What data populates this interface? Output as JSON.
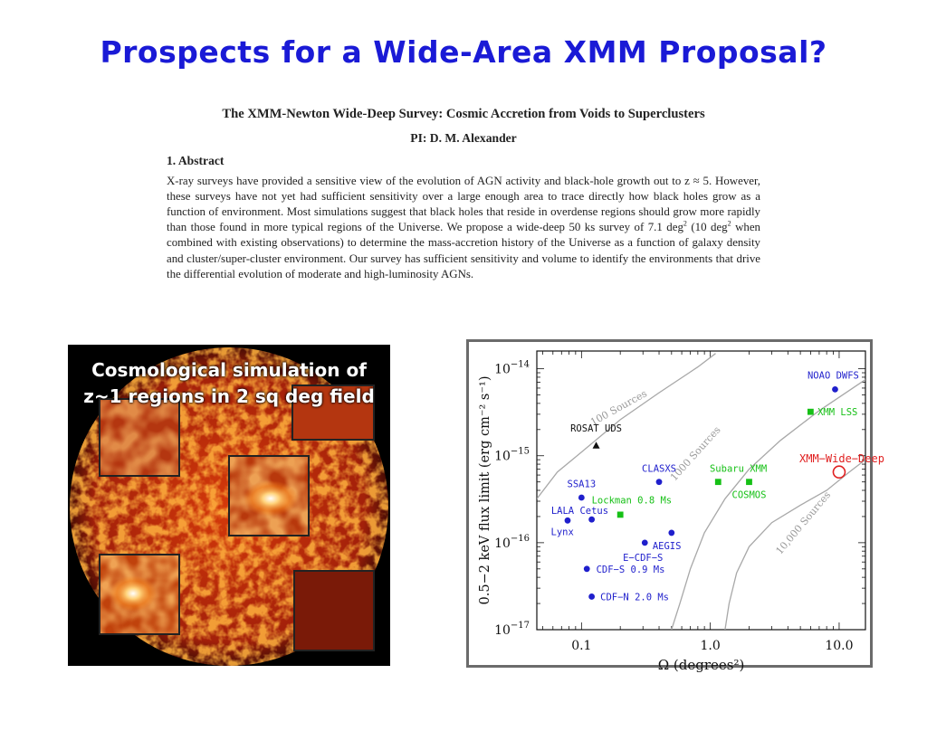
{
  "slide": {
    "title": "Prospects for a Wide-Area XMM Proposal?"
  },
  "abstract_image": {
    "proposal_title": "The XMM-Newton Wide-Deep Survey: Cosmic Accretion from Voids to Superclusters",
    "pi": "PI: D. M. Alexander",
    "section": "1.  Abstract",
    "text_1": "X-ray surveys have provided a sensitive view of the evolution of AGN activity and black-hole growth out to z ≈ 5. However, these surveys have not yet had sufficient sensitivity over a large enough area to trace directly how black holes grow as a function of environment. Most simulations suggest that black holes that reside in overdense regions should grow more rapidly than those found in more typical regions of the Universe. We propose a wide-deep 50 ks survey of 7.1 deg",
    "sup_1": "2",
    "text_2": " (10 deg",
    "sup_2": "2",
    "text_3": " when combined with existing observations) to determine the mass-accretion history of the Universe as a function of galaxy density and cluster/super-cluster environment. Our survey has sufficient sensitivity and volume to identify the environments that drive the differential evolution of moderate and high-luminosity AGNs."
  },
  "simulation": {
    "caption_line1": "Cosmological simulation of",
    "caption_line2": "z~1 regions in 2 sq deg field"
  },
  "colors": {
    "title": "#1a1ad6",
    "blue_points": "#1f1fcc",
    "green_points": "#16c016",
    "red_highlight": "#e02020",
    "curve": "#a8a8a8"
  },
  "chart_data": {
    "type": "scatter",
    "xlabel": "Ω (degrees²)",
    "ylabel": "0.5−2 keV flux limit (erg cm⁻² s⁻¹)",
    "x_scale": "log",
    "y_scale": "log",
    "xlim": [
      0.045,
      16
    ],
    "ylim": [
      1e-17,
      1.6e-14
    ],
    "x_ticks": [
      {
        "value": 0.1,
        "label": "0.1"
      },
      {
        "value": 1.0,
        "label": "1.0"
      },
      {
        "value": 10.0,
        "label": "10.0"
      }
    ],
    "y_ticks": [
      {
        "value": 1e-14,
        "base": "10",
        "exp": "−14"
      },
      {
        "value": 1e-15,
        "base": "10",
        "exp": "−15"
      },
      {
        "value": 1e-16,
        "base": "10",
        "exp": "−16"
      },
      {
        "value": 1e-17,
        "base": "10",
        "exp": "−17"
      }
    ],
    "curves": [
      {
        "label": "100 Sources",
        "points": [
          [
            0.045,
            3.2e-16
          ],
          [
            0.065,
            6.5e-16
          ],
          [
            0.1,
            1.1e-15
          ],
          [
            0.2,
            2.6e-15
          ],
          [
            0.4,
            5.3e-15
          ],
          [
            0.8,
            1.05e-14
          ],
          [
            1.1,
            1.5e-14
          ]
        ],
        "label_at": [
          0.2,
          3.3e-15
        ],
        "angle": -29
      },
      {
        "label": "1000 Sources",
        "points": [
          [
            0.5,
            1e-17
          ],
          [
            0.58,
            2e-17
          ],
          [
            0.7,
            5e-17
          ],
          [
            0.9,
            1.3e-16
          ],
          [
            1.3,
            3.2e-16
          ],
          [
            2.0,
            7e-16
          ],
          [
            3.5,
            1.5e-15
          ],
          [
            7.0,
            3.3e-15
          ],
          [
            16,
            7.5e-15
          ]
        ],
        "label_at": [
          0.8,
          1e-15
        ],
        "angle": -48
      },
      {
        "label": "10,000 Sources",
        "points": [
          [
            1.3,
            1e-17
          ],
          [
            1.4,
            2e-17
          ],
          [
            1.6,
            4.5e-17
          ],
          [
            2.0,
            9e-17
          ],
          [
            3.0,
            1.7e-16
          ],
          [
            5.0,
            2.7e-16
          ],
          [
            8.0,
            4e-16
          ],
          [
            12,
            6.5e-16
          ],
          [
            16,
            9e-16
          ]
        ],
        "label_at": [
          5.5,
          1.6e-16
        ],
        "angle": -50
      }
    ],
    "points": [
      {
        "label": "NOAO DWFS",
        "x": 9.3,
        "y": 5.8e-15,
        "color": "blue",
        "marker": "circle",
        "lx": 9.0,
        "ly": 8.5e-15,
        "anchor": "middle"
      },
      {
        "label": "XMM LSS",
        "x": 6.0,
        "y": 3.2e-15,
        "color": "green",
        "marker": "square",
        "lx": 6.8,
        "ly": 3.2e-15,
        "anchor": "start"
      },
      {
        "label": "ROSAT UDS",
        "x": 0.13,
        "y": 1.3e-15,
        "color": "black",
        "marker": "triangle",
        "lx": 0.13,
        "ly": 2.1e-15,
        "anchor": "middle"
      },
      {
        "label": "XMM−Wide−Deep",
        "x": 10.0,
        "y": 6.5e-16,
        "color": "red",
        "marker": "open-circle",
        "lx": 10.5,
        "ly": 9.2e-16,
        "anchor": "middle"
      },
      {
        "label": "CLASXS",
        "x": 0.4,
        "y": 5e-16,
        "color": "blue",
        "marker": "circle",
        "lx": 0.4,
        "ly": 7.2e-16,
        "anchor": "middle"
      },
      {
        "label": "Subaru XMM",
        "x": 1.15,
        "y": 5e-16,
        "color": "green",
        "marker": "square",
        "lx": 1.65,
        "ly": 7.2e-16,
        "anchor": "middle"
      },
      {
        "label": "COSMOS",
        "x": 2.0,
        "y": 5e-16,
        "color": "green",
        "marker": "square",
        "lx": 2.0,
        "ly": 3.6e-16,
        "anchor": "middle"
      },
      {
        "label": "SSA13",
        "x": 0.1,
        "y": 3.3e-16,
        "color": "blue",
        "marker": "circle",
        "lx": 0.1,
        "ly": 4.8e-16,
        "anchor": "middle"
      },
      {
        "label": "Lockman 0.8 Ms",
        "x": 0.2,
        "y": 2.1e-16,
        "color": "green",
        "marker": "square",
        "lx": 0.12,
        "ly": 3.1e-16,
        "anchor": "start"
      },
      {
        "label": "LALA Cetus",
        "x": 0.12,
        "y": 1.85e-16,
        "color": "blue",
        "marker": "circle",
        "lx": 0.097,
        "ly": 2.35e-16,
        "anchor": "middle"
      },
      {
        "label": "Lynx",
        "x": 0.078,
        "y": 1.8e-16,
        "color": "blue",
        "marker": "circle",
        "lx": 0.071,
        "ly": 1.35e-16,
        "anchor": "middle"
      },
      {
        "label": "AEGIS",
        "x": 0.5,
        "y": 1.3e-16,
        "color": "blue",
        "marker": "circle",
        "lx": 0.46,
        "ly": 9.3e-17,
        "anchor": "middle"
      },
      {
        "label": "E−CDF−S",
        "x": 0.31,
        "y": 1e-16,
        "color": "blue",
        "marker": "circle",
        "lx": 0.3,
        "ly": 6.8e-17,
        "anchor": "middle"
      },
      {
        "label": "CDF−S 0.9 Ms",
        "x": 0.11,
        "y": 5e-17,
        "color": "blue",
        "marker": "circle",
        "lx": 0.13,
        "ly": 5e-17,
        "anchor": "start"
      },
      {
        "label": "CDF−N 2.0 Ms",
        "x": 0.12,
        "y": 2.4e-17,
        "color": "blue",
        "marker": "circle",
        "lx": 0.14,
        "ly": 2.4e-17,
        "anchor": "start"
      }
    ]
  }
}
